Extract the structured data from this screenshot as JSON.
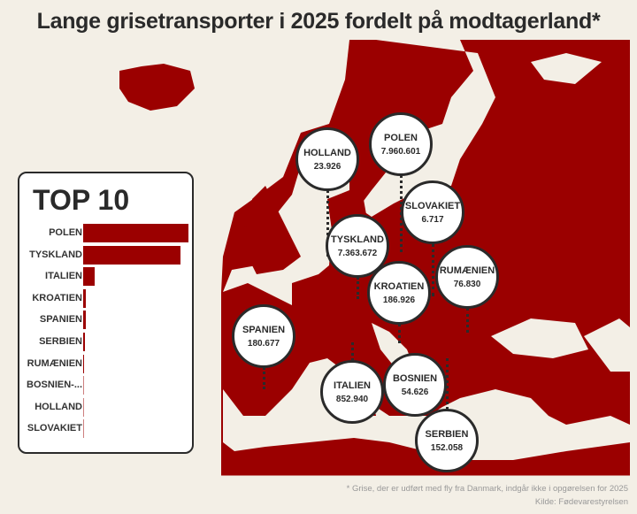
{
  "title": "Lange grisetransporter i 2025 fordelt på modtagerland*",
  "colors": {
    "land": "#9b0000",
    "sea": "#f3efe6",
    "bubble_border": "#2a2a2a"
  },
  "bubbles": [
    {
      "name": "HOLLAND",
      "value": "23.926"
    },
    {
      "name": "POLEN",
      "value": "7.960.601"
    },
    {
      "name": "SLOVAKIET",
      "value": "6.717"
    },
    {
      "name": "TYSKLAND",
      "value": "7.363.672"
    },
    {
      "name": "RUMÆNIEN",
      "value": "76.830"
    },
    {
      "name": "KROATIEN",
      "value": "186.926"
    },
    {
      "name": "SPANIEN",
      "value": "180.677"
    },
    {
      "name": "ITALIEN",
      "value": "852.940"
    },
    {
      "name": "BOSNIEN",
      "value": "54.626"
    },
    {
      "name": "SERBIEN",
      "value": "152.058"
    }
  ],
  "chart_data": {
    "type": "bar",
    "title": "TOP 10",
    "orientation": "horizontal",
    "categories": [
      "POLEN",
      "TYSKLAND",
      "ITALIEN",
      "KROATIEN",
      "SPANIEN",
      "SERBIEN",
      "RUMÆNIEN",
      "BOSNIEN-...",
      "HOLLAND",
      "SLOVAKIET"
    ],
    "values": [
      7960601,
      7363672,
      852940,
      186926,
      180677,
      152058,
      76830,
      54626,
      23926,
      6717
    ]
  },
  "footnote": "* Grise, der er udført med fly fra Danmark, indgår ikke i opgørelsen for 2025",
  "source": "Kilde: Fødevarestyrelsen"
}
